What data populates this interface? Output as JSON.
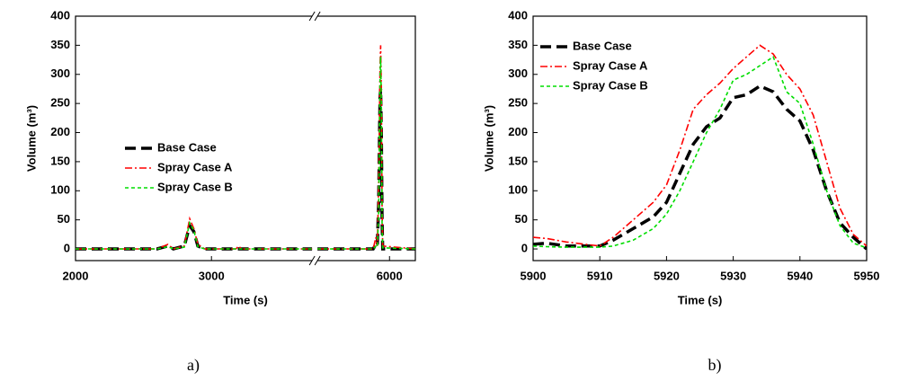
{
  "chart_data": [
    {
      "type": "line",
      "caption": "a)",
      "x_label": "Time (s)",
      "y_label": "Volume (m³)",
      "xlim": [
        2000,
        6190
      ],
      "xbreak": [
        3740,
        5470
      ],
      "xticks": [
        2000,
        3000,
        6000
      ],
      "ylim": [
        -20,
        400
      ],
      "yticks": [
        0,
        50,
        100,
        150,
        200,
        250,
        300,
        350,
        400
      ],
      "legend": "center",
      "series": [
        {
          "name": "Base Case",
          "color": "#000000",
          "dash": "dash",
          "x": [
            2000,
            2600,
            2680,
            2720,
            2800,
            2840,
            2870,
            2900,
            2950,
            3740,
            4600,
            5470,
            5880,
            5900,
            5910,
            5920,
            5930,
            5935,
            5940,
            5945,
            5950,
            6190
          ],
          "values": [
            0,
            0,
            5,
            0,
            5,
            40,
            30,
            5,
            0,
            0,
            null,
            0,
            0,
            8,
            5,
            80,
            260,
            275,
            200,
            50,
            0,
            0
          ]
        },
        {
          "name": "Spray Case A",
          "color": "#ff0000",
          "dash": "dashdot",
          "x": [
            2000,
            2600,
            2680,
            2720,
            2800,
            2840,
            2870,
            2900,
            2950,
            3180,
            3200,
            3220,
            3740,
            4600,
            5470,
            5880,
            5900,
            5910,
            5920,
            5930,
            5935,
            5940,
            5945,
            5950,
            6190
          ],
          "values": [
            0,
            0,
            8,
            0,
            5,
            52,
            35,
            8,
            0,
            0,
            5,
            0,
            0,
            null,
            0,
            0,
            20,
            5,
            110,
            310,
            350,
            275,
            70,
            5,
            0
          ]
        },
        {
          "name": "Spray Case B",
          "color": "#00dd00",
          "dash": "dot",
          "x": [
            2000,
            2600,
            2680,
            2720,
            2800,
            2840,
            2870,
            2900,
            2950,
            3740,
            4600,
            5470,
            5880,
            5900,
            5910,
            5920,
            5930,
            5935,
            5940,
            5945,
            5950,
            6190
          ],
          "values": [
            0,
            0,
            4,
            0,
            3,
            45,
            32,
            4,
            0,
            0,
            null,
            0,
            0,
            5,
            3,
            60,
            290,
            330,
            250,
            40,
            2,
            0
          ]
        }
      ]
    },
    {
      "type": "line",
      "caption": "b)",
      "x_label": "Time (s)",
      "y_label": "Volume (m³)",
      "xlim": [
        5900,
        5950
      ],
      "xticks": [
        5900,
        5910,
        5920,
        5930,
        5940,
        5950
      ],
      "ylim": [
        -20,
        400
      ],
      "yticks": [
        0,
        50,
        100,
        150,
        200,
        250,
        300,
        350,
        400
      ],
      "legend": "upper left",
      "series": [
        {
          "name": "Base Case",
          "color": "#000000",
          "dash": "dash",
          "x": [
            5900,
            5902,
            5905,
            5910,
            5912,
            5915,
            5918,
            5920,
            5922,
            5924,
            5926,
            5928,
            5930,
            5932,
            5934,
            5936,
            5938,
            5940,
            5942,
            5944,
            5946,
            5948,
            5950
          ],
          "values": [
            8,
            10,
            5,
            5,
            15,
            35,
            55,
            80,
            130,
            180,
            210,
            225,
            260,
            265,
            280,
            270,
            240,
            220,
            170,
            100,
            45,
            20,
            0
          ]
        },
        {
          "name": "Spray Case A",
          "color": "#ff0000",
          "dash": "dashdot",
          "x": [
            5900,
            5902,
            5905,
            5910,
            5912,
            5915,
            5918,
            5920,
            5922,
            5924,
            5926,
            5928,
            5930,
            5932,
            5934,
            5936,
            5938,
            5940,
            5942,
            5944,
            5946,
            5948,
            5950
          ],
          "values": [
            20,
            18,
            12,
            5,
            20,
            50,
            80,
            110,
            170,
            240,
            265,
            285,
            310,
            330,
            350,
            335,
            300,
            275,
            230,
            150,
            70,
            25,
            5
          ]
        },
        {
          "name": "Spray Case B",
          "color": "#00dd00",
          "dash": "dot",
          "x": [
            5900,
            5902,
            5905,
            5910,
            5912,
            5915,
            5918,
            5920,
            5922,
            5924,
            5926,
            5928,
            5930,
            5932,
            5934,
            5936,
            5938,
            5940,
            5942,
            5944,
            5946,
            5948,
            5950
          ],
          "values": [
            5,
            4,
            3,
            3,
            5,
            15,
            35,
            60,
            100,
            150,
            200,
            240,
            290,
            300,
            315,
            330,
            270,
            250,
            180,
            100,
            40,
            10,
            2
          ]
        }
      ]
    }
  ]
}
